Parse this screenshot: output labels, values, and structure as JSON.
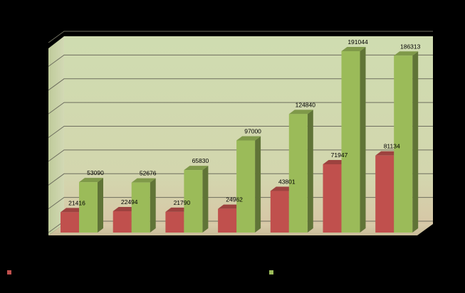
{
  "chart_data": {
    "type": "bar",
    "style": "3d-clustered-column",
    "categories": [
      "",
      "",
      "",
      "",
      "",
      "",
      ""
    ],
    "series": [
      {
        "color": "#C0504D",
        "values": [
          21416,
          22494,
          21790,
          24962,
          43801,
          71947,
          81134
        ]
      },
      {
        "color": "#9BBB59",
        "values": [
          53090,
          52676,
          65830,
          97000,
          124840,
          191044,
          186313
        ]
      }
    ],
    "data_labels": {
      "series0": [
        "21416",
        "22494",
        "21790",
        "24962",
        "43801",
        "71947",
        "81134"
      ],
      "series1": [
        "53090",
        "52676",
        "65830",
        "97000",
        "124840",
        "191044",
        "186313"
      ]
    },
    "title": "",
    "xlabel": "",
    "ylabel": "",
    "ylim": [
      0,
      200000
    ],
    "grid": true,
    "legend": {
      "position": "bottom",
      "entries": [
        "",
        ""
      ]
    },
    "colors": {
      "background": "#000000",
      "wall_top": "#CFDCB0",
      "wall_bottom": "#D7C7A6",
      "gridline": "#6E6E5E",
      "series0_front": "#C0504D",
      "series1_front": "#9BBB59"
    }
  }
}
